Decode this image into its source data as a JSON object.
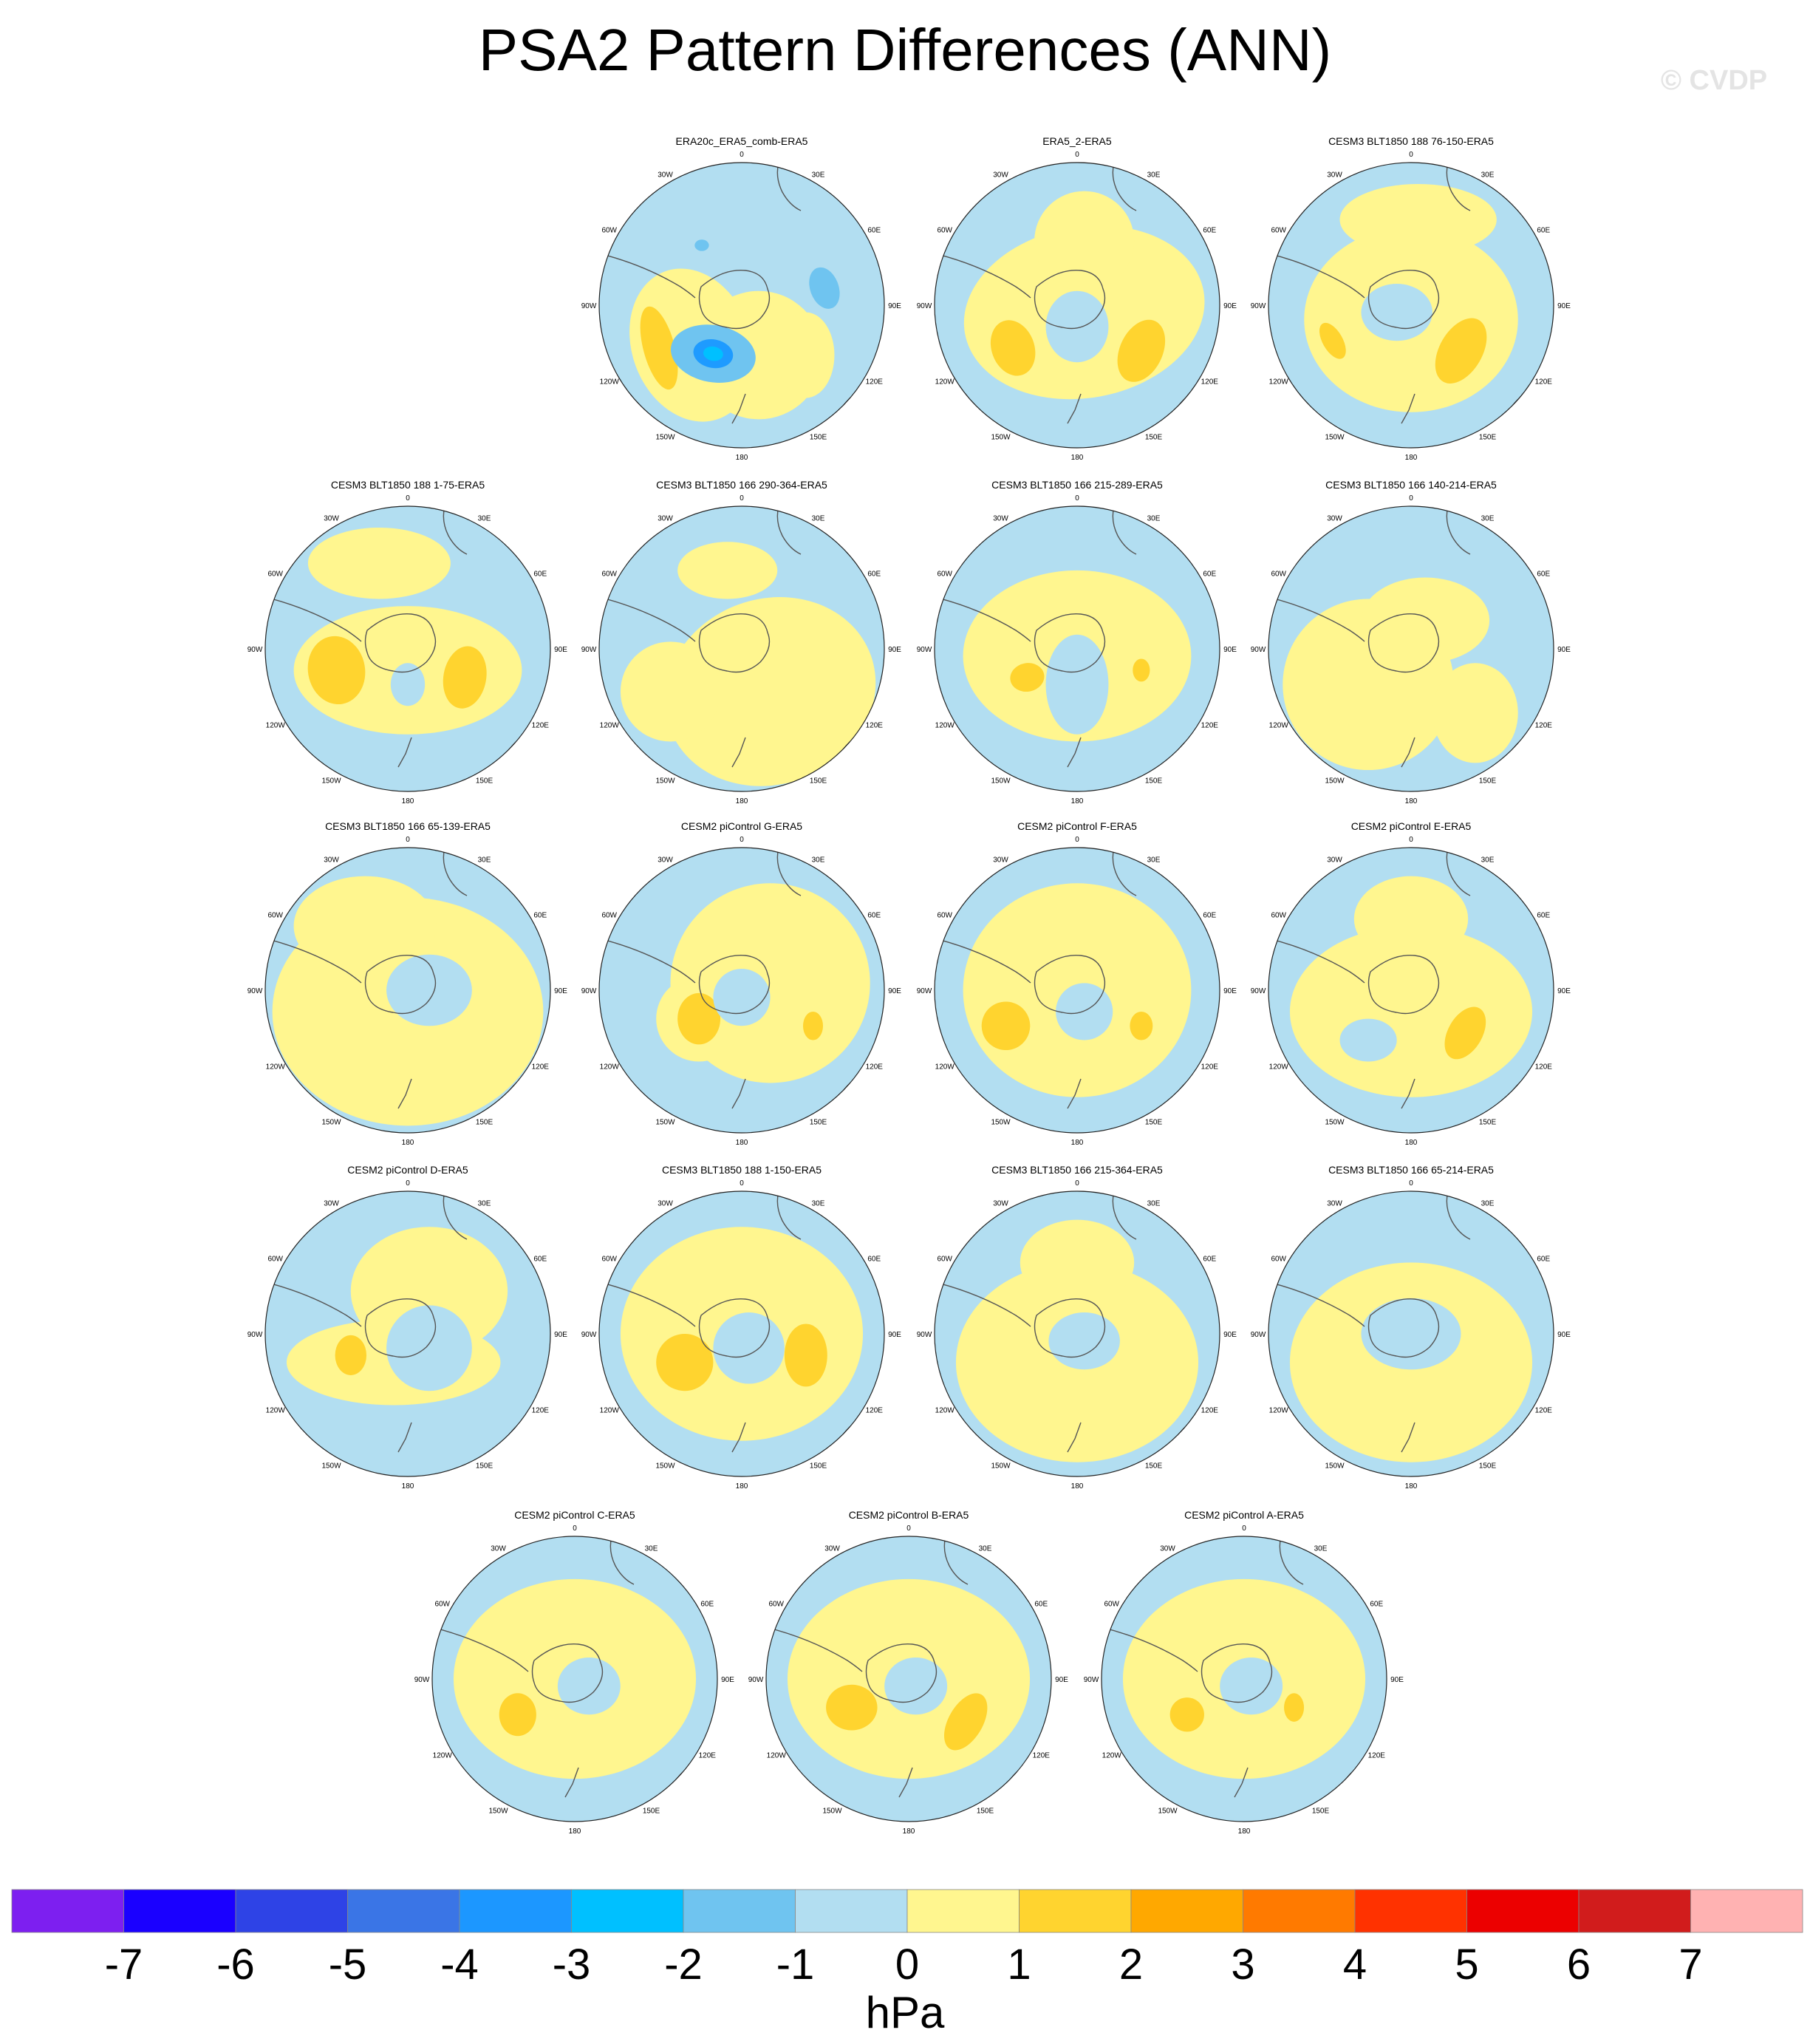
{
  "title": "PSA2 Pattern Differences (ANN)",
  "watermark": "© CVDP",
  "units": "hPa",
  "longitude_labels": [
    "0",
    "30E",
    "60E",
    "90E",
    "120E",
    "150E",
    "180",
    "150W",
    "120W",
    "90W",
    "60W",
    "30W"
  ],
  "panels": [
    {
      "title": "ERA20c_ERA5_comb-ERA5",
      "features": [
        {
          "c": "#fff68f",
          "dx": -0.35,
          "dy": 0.28,
          "rx": 0.42,
          "ry": 0.55,
          "rot": -20
        },
        {
          "c": "#fff68f",
          "dx": 0.12,
          "dy": 0.35,
          "rx": 0.45,
          "ry": 0.45,
          "rot": 0
        },
        {
          "c": "#fff68f",
          "dx": 0.45,
          "dy": 0.35,
          "rx": 0.2,
          "ry": 0.3,
          "rot": 0
        },
        {
          "c": "#ffd42f",
          "dx": -0.58,
          "dy": 0.3,
          "rx": 0.11,
          "ry": 0.3,
          "rot": -15
        },
        {
          "c": "#6fc4f0",
          "dx": -0.2,
          "dy": 0.34,
          "rx": 0.3,
          "ry": 0.2,
          "rot": 10
        },
        {
          "c": "#1e9bff",
          "dx": -0.2,
          "dy": 0.34,
          "rx": 0.14,
          "ry": 0.1,
          "rot": 10
        },
        {
          "c": "#00c0ff",
          "dx": -0.2,
          "dy": 0.34,
          "rx": 0.07,
          "ry": 0.05,
          "rot": 10
        },
        {
          "c": "#6fc4f0",
          "dx": 0.58,
          "dy": -0.12,
          "rx": 0.1,
          "ry": 0.15,
          "rot": -20
        },
        {
          "c": "#6fc4f0",
          "dx": -0.28,
          "dy": -0.42,
          "rx": 0.05,
          "ry": 0.04,
          "rot": 0
        }
      ]
    },
    {
      "title": "ERA5_2-ERA5",
      "features": [
        {
          "c": "#fff68f",
          "dx": 0.05,
          "dy": 0.05,
          "rx": 0.85,
          "ry": 0.6,
          "rot": -10
        },
        {
          "c": "#fff68f",
          "dx": 0.05,
          "dy": -0.45,
          "rx": 0.35,
          "ry": 0.35,
          "rot": 0
        },
        {
          "c": "#ffd42f",
          "dx": -0.45,
          "dy": 0.3,
          "rx": 0.15,
          "ry": 0.2,
          "rot": -20
        },
        {
          "c": "#ffd42f",
          "dx": 0.45,
          "dy": 0.32,
          "rx": 0.15,
          "ry": 0.23,
          "rot": 25
        },
        {
          "c": "#b2def1",
          "dx": 0.0,
          "dy": 0.15,
          "rx": 0.22,
          "ry": 0.25,
          "rot": 0
        }
      ]
    },
    {
      "title": "CESM3 BLT1850 188 76-150-ERA5",
      "features": [
        {
          "c": "#fff68f",
          "dx": 0.0,
          "dy": 0.1,
          "rx": 0.75,
          "ry": 0.65,
          "rot": 0
        },
        {
          "c": "#fff68f",
          "dx": 0.05,
          "dy": -0.6,
          "rx": 0.55,
          "ry": 0.25,
          "rot": 0
        },
        {
          "c": "#ffd42f",
          "dx": -0.55,
          "dy": 0.25,
          "rx": 0.07,
          "ry": 0.14,
          "rot": -30
        },
        {
          "c": "#ffd42f",
          "dx": 0.35,
          "dy": 0.32,
          "rx": 0.15,
          "ry": 0.25,
          "rot": 30
        },
        {
          "c": "#b2def1",
          "dx": -0.1,
          "dy": 0.05,
          "rx": 0.25,
          "ry": 0.2,
          "rot": 0
        }
      ]
    },
    {
      "title": "CESM3 BLT1850 188 1-75-ERA5",
      "features": [
        {
          "c": "#fff68f",
          "dx": 0.0,
          "dy": 0.15,
          "rx": 0.8,
          "ry": 0.45,
          "rot": 0
        },
        {
          "c": "#fff68f",
          "dx": -0.2,
          "dy": -0.6,
          "rx": 0.5,
          "ry": 0.25,
          "rot": 0
        },
        {
          "c": "#ffd42f",
          "dx": -0.5,
          "dy": 0.15,
          "rx": 0.2,
          "ry": 0.24,
          "rot": -10
        },
        {
          "c": "#ffd42f",
          "dx": 0.4,
          "dy": 0.2,
          "rx": 0.15,
          "ry": 0.22,
          "rot": 10
        },
        {
          "c": "#b2def1",
          "dx": 0.0,
          "dy": 0.25,
          "rx": 0.12,
          "ry": 0.15,
          "rot": 0
        }
      ]
    },
    {
      "title": "CESM3 BLT1850 166 290-364-ERA5",
      "features": [
        {
          "c": "#fff68f",
          "dx": 0.2,
          "dy": 0.3,
          "rx": 0.75,
          "ry": 0.65,
          "rot": -20
        },
        {
          "c": "#fff68f",
          "dx": -0.1,
          "dy": -0.55,
          "rx": 0.35,
          "ry": 0.2,
          "rot": 0
        },
        {
          "c": "#fff68f",
          "dx": -0.5,
          "dy": 0.3,
          "rx": 0.35,
          "ry": 0.35,
          "rot": 0
        }
      ]
    },
    {
      "title": "CESM3 BLT1850 166 215-289-ERA5",
      "features": [
        {
          "c": "#fff68f",
          "dx": 0.0,
          "dy": 0.05,
          "rx": 0.8,
          "ry": 0.6,
          "rot": 0
        },
        {
          "c": "#b2def1",
          "dx": 0.0,
          "dy": 0.25,
          "rx": 0.22,
          "ry": 0.35,
          "rot": 0
        },
        {
          "c": "#ffd42f",
          "dx": -0.35,
          "dy": 0.2,
          "rx": 0.12,
          "ry": 0.1,
          "rot": -10
        },
        {
          "c": "#ffd42f",
          "dx": 0.45,
          "dy": 0.15,
          "rx": 0.06,
          "ry": 0.08,
          "rot": 0
        }
      ]
    },
    {
      "title": "CESM3 BLT1850 166 140-214-ERA5",
      "features": [
        {
          "c": "#fff68f",
          "dx": -0.3,
          "dy": 0.25,
          "rx": 0.6,
          "ry": 0.6,
          "rot": 0
        },
        {
          "c": "#fff68f",
          "dx": 0.1,
          "dy": -0.2,
          "rx": 0.45,
          "ry": 0.3,
          "rot": 0
        },
        {
          "c": "#fff68f",
          "dx": 0.45,
          "dy": 0.45,
          "rx": 0.3,
          "ry": 0.35,
          "rot": 0
        }
      ]
    },
    {
      "title": "CESM3 BLT1850 166 65-139-ERA5",
      "features": [
        {
          "c": "#fff68f",
          "dx": 0.0,
          "dy": 0.15,
          "rx": 0.95,
          "ry": 0.8,
          "rot": 0
        },
        {
          "c": "#fff68f",
          "dx": -0.3,
          "dy": -0.45,
          "rx": 0.5,
          "ry": 0.35,
          "rot": 0
        },
        {
          "c": "#b2def1",
          "dx": 0.15,
          "dy": 0.0,
          "rx": 0.3,
          "ry": 0.25,
          "rot": 0
        }
      ]
    },
    {
      "title": "CESM2 piControl G-ERA5",
      "features": [
        {
          "c": "#fff68f",
          "dx": 0.2,
          "dy": -0.05,
          "rx": 0.7,
          "ry": 0.7,
          "rot": 0
        },
        {
          "c": "#fff68f",
          "dx": -0.3,
          "dy": 0.2,
          "rx": 0.3,
          "ry": 0.3,
          "rot": 0
        },
        {
          "c": "#ffd42f",
          "dx": -0.3,
          "dy": 0.2,
          "rx": 0.15,
          "ry": 0.18,
          "rot": 0
        },
        {
          "c": "#ffd42f",
          "dx": 0.5,
          "dy": 0.25,
          "rx": 0.07,
          "ry": 0.1,
          "rot": 0
        },
        {
          "c": "#b2def1",
          "dx": 0.0,
          "dy": 0.05,
          "rx": 0.2,
          "ry": 0.2,
          "rot": 0
        }
      ]
    },
    {
      "title": "CESM2 piControl F-ERA5",
      "features": [
        {
          "c": "#fff68f",
          "dx": 0.0,
          "dy": 0.0,
          "rx": 0.8,
          "ry": 0.75,
          "rot": 0
        },
        {
          "c": "#ffd42f",
          "dx": -0.5,
          "dy": 0.25,
          "rx": 0.17,
          "ry": 0.17,
          "rot": -20
        },
        {
          "c": "#ffd42f",
          "dx": 0.45,
          "dy": 0.25,
          "rx": 0.08,
          "ry": 0.1,
          "rot": 0
        },
        {
          "c": "#b2def1",
          "dx": 0.05,
          "dy": 0.15,
          "rx": 0.2,
          "ry": 0.2,
          "rot": 0
        }
      ]
    },
    {
      "title": "CESM2 piControl E-ERA5",
      "features": [
        {
          "c": "#fff68f",
          "dx": 0.0,
          "dy": 0.15,
          "rx": 0.85,
          "ry": 0.6,
          "rot": 0
        },
        {
          "c": "#fff68f",
          "dx": 0.0,
          "dy": -0.5,
          "rx": 0.4,
          "ry": 0.3,
          "rot": 0
        },
        {
          "c": "#b2def1",
          "dx": -0.3,
          "dy": 0.35,
          "rx": 0.2,
          "ry": 0.15,
          "rot": 0
        },
        {
          "c": "#ffd42f",
          "dx": 0.38,
          "dy": 0.3,
          "rx": 0.12,
          "ry": 0.2,
          "rot": 30
        }
      ]
    },
    {
      "title": "CESM2 piControl D-ERA5",
      "features": [
        {
          "c": "#fff68f",
          "dx": -0.1,
          "dy": 0.2,
          "rx": 0.75,
          "ry": 0.3,
          "rot": 0
        },
        {
          "c": "#fff68f",
          "dx": 0.15,
          "dy": -0.3,
          "rx": 0.55,
          "ry": 0.45,
          "rot": 0
        },
        {
          "c": "#b2def1",
          "dx": 0.15,
          "dy": 0.1,
          "rx": 0.3,
          "ry": 0.3,
          "rot": 0
        },
        {
          "c": "#ffd42f",
          "dx": -0.4,
          "dy": 0.15,
          "rx": 0.11,
          "ry": 0.14,
          "rot": 0
        }
      ]
    },
    {
      "title": "CESM3 BLT1850 188 1-150-ERA5",
      "features": [
        {
          "c": "#fff68f",
          "dx": 0.0,
          "dy": 0.0,
          "rx": 0.85,
          "ry": 0.75,
          "rot": 0
        },
        {
          "c": "#b2def1",
          "dx": 0.05,
          "dy": 0.1,
          "rx": 0.25,
          "ry": 0.25,
          "rot": 0
        },
        {
          "c": "#ffd42f",
          "dx": -0.4,
          "dy": 0.2,
          "rx": 0.2,
          "ry": 0.2,
          "rot": -10
        },
        {
          "c": "#ffd42f",
          "dx": 0.45,
          "dy": 0.15,
          "rx": 0.15,
          "ry": 0.22,
          "rot": 0
        }
      ]
    },
    {
      "title": "CESM3 BLT1850 166 215-364-ERA5",
      "features": [
        {
          "c": "#fff68f",
          "dx": 0.0,
          "dy": 0.2,
          "rx": 0.85,
          "ry": 0.7,
          "rot": 0
        },
        {
          "c": "#fff68f",
          "dx": 0.0,
          "dy": -0.5,
          "rx": 0.4,
          "ry": 0.3,
          "rot": 0
        },
        {
          "c": "#b2def1",
          "dx": 0.05,
          "dy": 0.05,
          "rx": 0.25,
          "ry": 0.2,
          "rot": 0
        }
      ]
    },
    {
      "title": "CESM3 BLT1850 166 65-214-ERA5",
      "features": [
        {
          "c": "#fff68f",
          "dx": 0.0,
          "dy": 0.2,
          "rx": 0.85,
          "ry": 0.7,
          "rot": 0
        },
        {
          "c": "#b2def1",
          "dx": 0.0,
          "dy": 0.0,
          "rx": 0.35,
          "ry": 0.25,
          "rot": 0
        }
      ]
    },
    {
      "title": "CESM2 piControl C-ERA5",
      "features": [
        {
          "c": "#fff68f",
          "dx": 0.0,
          "dy": 0.0,
          "rx": 0.85,
          "ry": 0.7,
          "rot": 0
        },
        {
          "c": "#ffd42f",
          "dx": -0.4,
          "dy": 0.25,
          "rx": 0.13,
          "ry": 0.15,
          "rot": 0
        },
        {
          "c": "#b2def1",
          "dx": 0.1,
          "dy": 0.05,
          "rx": 0.22,
          "ry": 0.2,
          "rot": 0
        }
      ]
    },
    {
      "title": "CESM2 piControl B-ERA5",
      "features": [
        {
          "c": "#fff68f",
          "dx": 0.0,
          "dy": 0.0,
          "rx": 0.85,
          "ry": 0.7,
          "rot": 0
        },
        {
          "c": "#ffd42f",
          "dx": -0.4,
          "dy": 0.2,
          "rx": 0.18,
          "ry": 0.16,
          "rot": 0
        },
        {
          "c": "#ffd42f",
          "dx": 0.4,
          "dy": 0.3,
          "rx": 0.12,
          "ry": 0.22,
          "rot": 30
        },
        {
          "c": "#b2def1",
          "dx": 0.05,
          "dy": 0.05,
          "rx": 0.22,
          "ry": 0.2,
          "rot": 0
        }
      ]
    },
    {
      "title": "CESM2 piControl A-ERA5",
      "features": [
        {
          "c": "#fff68f",
          "dx": 0.0,
          "dy": 0.0,
          "rx": 0.85,
          "ry": 0.7,
          "rot": 0
        },
        {
          "c": "#ffd42f",
          "dx": -0.4,
          "dy": 0.25,
          "rx": 0.12,
          "ry": 0.12,
          "rot": 0
        },
        {
          "c": "#ffd42f",
          "dx": 0.35,
          "dy": 0.2,
          "rx": 0.07,
          "ry": 0.1,
          "rot": 0
        },
        {
          "c": "#b2def1",
          "dx": 0.05,
          "dy": 0.05,
          "rx": 0.22,
          "ry": 0.2,
          "rot": 0
        }
      ]
    }
  ],
  "colorbar": {
    "colors": [
      "#7d1ff0",
      "#1a00ff",
      "#2e43e6",
      "#3a75e6",
      "#1c97ff",
      "#00c0ff",
      "#6fc4f0",
      "#b2def1",
      "#fff68f",
      "#ffd42f",
      "#ffa800",
      "#ff7a00",
      "#ff3200",
      "#ec0000",
      "#d11c1c",
      "#ffb2b2"
    ],
    "labels": [
      "-7",
      "-6",
      "-5",
      "-4",
      "-3",
      "-2",
      "-1",
      "0",
      "1",
      "2",
      "3",
      "4",
      "5",
      "6",
      "7"
    ]
  }
}
